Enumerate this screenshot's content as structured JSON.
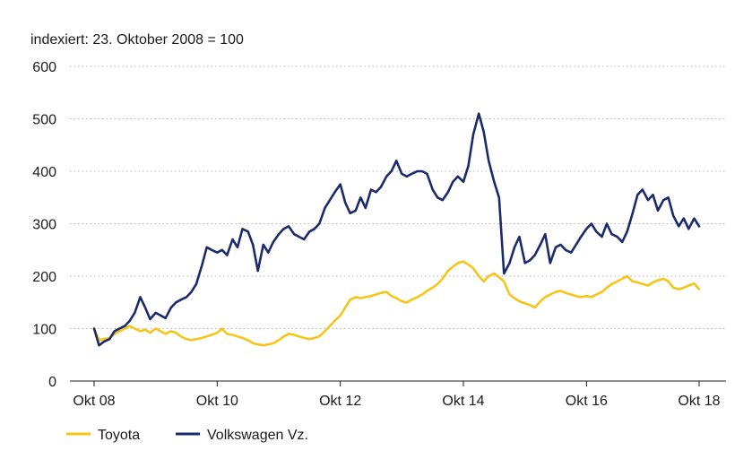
{
  "chart_data": {
    "type": "line",
    "subtitle": "indexiert: 23. Oktober 2008 = 100",
    "x_ticks": [
      "Okt 08",
      "Okt 10",
      "Okt 12",
      "Okt 14",
      "Okt 16",
      "Okt 18"
    ],
    "y_ticks": [
      "0",
      "100",
      "200",
      "300",
      "400",
      "500",
      "600"
    ],
    "ylim": [
      0,
      600
    ],
    "xlim": [
      2008.8,
      2018.8
    ],
    "grid": "horizontal-dotted",
    "legend_position": "bottom-left",
    "series": [
      {
        "name": "Toyota",
        "color": "#F5C518",
        "x": [
          2008.81,
          2008.89,
          2008.97,
          2009.06,
          2009.14,
          2009.22,
          2009.31,
          2009.39,
          2009.47,
          2009.56,
          2009.64,
          2009.72,
          2009.81,
          2009.89,
          2009.97,
          2010.06,
          2010.14,
          2010.22,
          2010.31,
          2010.39,
          2010.47,
          2010.56,
          2010.64,
          2010.72,
          2010.81,
          2010.89,
          2010.97,
          2011.06,
          2011.14,
          2011.22,
          2011.31,
          2011.39,
          2011.47,
          2011.56,
          2011.64,
          2011.72,
          2011.81,
          2011.89,
          2011.97,
          2012.06,
          2012.14,
          2012.22,
          2012.31,
          2012.39,
          2012.47,
          2012.56,
          2012.64,
          2012.72,
          2012.81,
          2012.89,
          2012.97,
          2013.06,
          2013.14,
          2013.22,
          2013.31,
          2013.39,
          2013.47,
          2013.56,
          2013.64,
          2013.72,
          2013.81,
          2013.89,
          2013.97,
          2014.06,
          2014.14,
          2014.22,
          2014.31,
          2014.39,
          2014.47,
          2014.56,
          2014.64,
          2014.72,
          2014.81,
          2014.89,
          2014.97,
          2015.06,
          2015.14,
          2015.22,
          2015.31,
          2015.39,
          2015.47,
          2015.56,
          2015.64,
          2015.72,
          2015.81,
          2015.89,
          2015.97,
          2016.06,
          2016.14,
          2016.22,
          2016.31,
          2016.39,
          2016.47,
          2016.56,
          2016.64,
          2016.72,
          2016.81,
          2016.89,
          2016.97,
          2017.06,
          2017.14,
          2017.22,
          2017.31,
          2017.39,
          2017.47,
          2017.56,
          2017.64,
          2017.72,
          2017.81,
          2017.89,
          2017.97,
          2018.06,
          2018.14,
          2018.22,
          2018.31,
          2018.39,
          2018.47,
          2018.56,
          2018.64
        ],
        "values": [
          100,
          78,
          80,
          82,
          90,
          95,
          100,
          105,
          100,
          95,
          98,
          92,
          100,
          95,
          90,
          95,
          92,
          85,
          80,
          78,
          80,
          82,
          85,
          88,
          92,
          100,
          90,
          88,
          85,
          82,
          78,
          72,
          70,
          68,
          70,
          72,
          78,
          85,
          90,
          88,
          85,
          82,
          80,
          82,
          85,
          95,
          105,
          115,
          125,
          140,
          155,
          160,
          158,
          160,
          162,
          165,
          168,
          170,
          162,
          158,
          152,
          150,
          155,
          160,
          165,
          172,
          178,
          185,
          195,
          210,
          218,
          225,
          228,
          222,
          215,
          200,
          190,
          200,
          205,
          198,
          190,
          165,
          158,
          152,
          148,
          145,
          140,
          152,
          160,
          165,
          170,
          172,
          168,
          165,
          162,
          160,
          162,
          160,
          165,
          170,
          178,
          185,
          190,
          195,
          200,
          190,
          188,
          185,
          182,
          188,
          192,
          195,
          190,
          178,
          175,
          178,
          182,
          186,
          175
        ]
      },
      {
        "name": "Volkswagen Vz.",
        "color": "#1B2A6B",
        "x": [
          2008.81,
          2008.89,
          2008.97,
          2009.06,
          2009.14,
          2009.22,
          2009.31,
          2009.39,
          2009.47,
          2009.56,
          2009.64,
          2009.72,
          2009.81,
          2009.89,
          2009.97,
          2010.06,
          2010.14,
          2010.22,
          2010.31,
          2010.39,
          2010.47,
          2010.56,
          2010.64,
          2010.72,
          2010.81,
          2010.89,
          2010.97,
          2011.06,
          2011.14,
          2011.22,
          2011.31,
          2011.39,
          2011.47,
          2011.56,
          2011.64,
          2011.72,
          2011.81,
          2011.89,
          2011.97,
          2012.06,
          2012.14,
          2012.22,
          2012.31,
          2012.39,
          2012.47,
          2012.56,
          2012.64,
          2012.72,
          2012.81,
          2012.89,
          2012.97,
          2013.06,
          2013.14,
          2013.22,
          2013.31,
          2013.39,
          2013.47,
          2013.56,
          2013.64,
          2013.72,
          2013.81,
          2013.89,
          2013.97,
          2014.06,
          2014.14,
          2014.22,
          2014.31,
          2014.39,
          2014.47,
          2014.56,
          2014.64,
          2014.72,
          2014.81,
          2014.89,
          2014.97,
          2015.06,
          2015.14,
          2015.22,
          2015.31,
          2015.39,
          2015.47,
          2015.56,
          2015.64,
          2015.72,
          2015.81,
          2015.89,
          2015.97,
          2016.06,
          2016.14,
          2016.22,
          2016.31,
          2016.39,
          2016.47,
          2016.56,
          2016.64,
          2016.72,
          2016.81,
          2016.89,
          2016.97,
          2017.06,
          2017.14,
          2017.22,
          2017.31,
          2017.39,
          2017.47,
          2017.56,
          2017.64,
          2017.72,
          2017.81,
          2017.89,
          2017.97,
          2018.06,
          2018.14,
          2018.22,
          2018.31,
          2018.39,
          2018.47,
          2018.56,
          2018.64
        ],
        "values": [
          100,
          68,
          75,
          80,
          95,
          100,
          105,
          115,
          130,
          160,
          140,
          118,
          130,
          125,
          120,
          140,
          150,
          155,
          160,
          170,
          185,
          220,
          255,
          250,
          245,
          250,
          240,
          270,
          255,
          290,
          285,
          260,
          210,
          260,
          245,
          265,
          280,
          290,
          295,
          280,
          275,
          270,
          285,
          290,
          300,
          330,
          345,
          360,
          375,
          340,
          320,
          325,
          350,
          330,
          365,
          360,
          370,
          390,
          400,
          420,
          395,
          390,
          395,
          400,
          400,
          395,
          365,
          350,
          345,
          360,
          380,
          390,
          380,
          410,
          470,
          510,
          475,
          420,
          380,
          350,
          205,
          225,
          255,
          275,
          225,
          230,
          240,
          260,
          280,
          225,
          255,
          260,
          250,
          245,
          260,
          275,
          290,
          300,
          285,
          275,
          300,
          280,
          275,
          265,
          285,
          320,
          355,
          365,
          345,
          355,
          325,
          345,
          350,
          315,
          295,
          310,
          290,
          310,
          295
        ]
      }
    ]
  }
}
